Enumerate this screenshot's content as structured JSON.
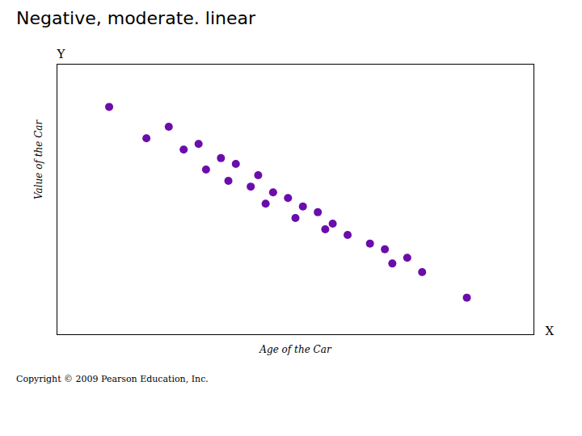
{
  "chart_data": {
    "type": "scatter",
    "title": "Negative, moderate. linear",
    "xlabel": "Age of the Car",
    "ylabel": "Value of the Car",
    "annotations": [
      "Y",
      "X",
      "Copyright © 2009 Pearson Education, Inc."
    ],
    "x": [
      1.5,
      2.3,
      2.0,
      2.7,
      2.5,
      3.0,
      3.2,
      2.8,
      3.5,
      3.1,
      3.4,
      3.7,
      3.9,
      3.6,
      4.1,
      4.3,
      4.0,
      4.5,
      4.4,
      4.7,
      5.0,
      5.2,
      5.5,
      5.3,
      5.7,
      6.3
    ],
    "values": [
      8.5,
      7.8,
      7.4,
      7.2,
      7.0,
      6.7,
      6.5,
      6.3,
      6.1,
      5.9,
      5.7,
      5.5,
      5.3,
      5.1,
      5.0,
      4.8,
      4.6,
      4.4,
      4.2,
      4.0,
      3.7,
      3.5,
      3.2,
      3.0,
      2.7,
      1.8
    ],
    "color": "#6B0DAB",
    "xlim": [
      0.8,
      7.2
    ],
    "ylim": [
      0.5,
      10.0
    ],
    "xticks": [],
    "yticks": [],
    "tick_labels": false,
    "grid": false
  }
}
